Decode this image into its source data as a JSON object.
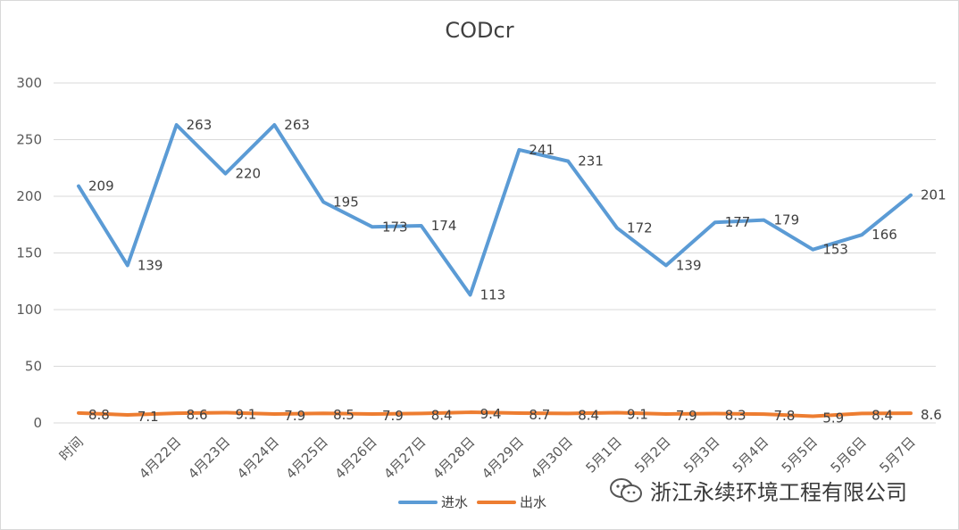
{
  "chart_data": {
    "type": "line",
    "title": "CODcr",
    "categories": [
      "时间",
      "",
      "4月22日",
      "4月23日",
      "4月24日",
      "4月25日",
      "4月26日",
      "4月27日",
      "4月28日",
      "4月29日",
      "4月30日",
      "5月1日",
      "5月2日",
      "5月3日",
      "5月4日",
      "5月5日",
      "5月6日",
      "5月7日"
    ],
    "series": [
      {
        "name": "进水",
        "color": "#5b9bd5",
        "values": [
          209,
          139,
          263,
          220,
          263,
          195,
          173,
          174,
          113,
          241,
          231,
          172,
          139,
          177,
          179,
          153,
          166,
          201
        ]
      },
      {
        "name": "出水",
        "color": "#ed7d31",
        "values": [
          8.8,
          7.1,
          8.6,
          9.1,
          7.9,
          8.5,
          7.9,
          8.4,
          9.4,
          8.7,
          8.4,
          9.1,
          7.9,
          8.3,
          7.8,
          5.9,
          8.4,
          8.6
        ]
      }
    ],
    "ylim": [
      0,
      300
    ],
    "yticks": [
      0,
      50,
      100,
      150,
      200,
      250,
      300
    ],
    "grid": true,
    "legend_position": "bottom",
    "xlabel": "",
    "ylabel": ""
  },
  "watermark": {
    "text": "浙江永续环境工程有限公司",
    "icon": "wechat-icon"
  }
}
